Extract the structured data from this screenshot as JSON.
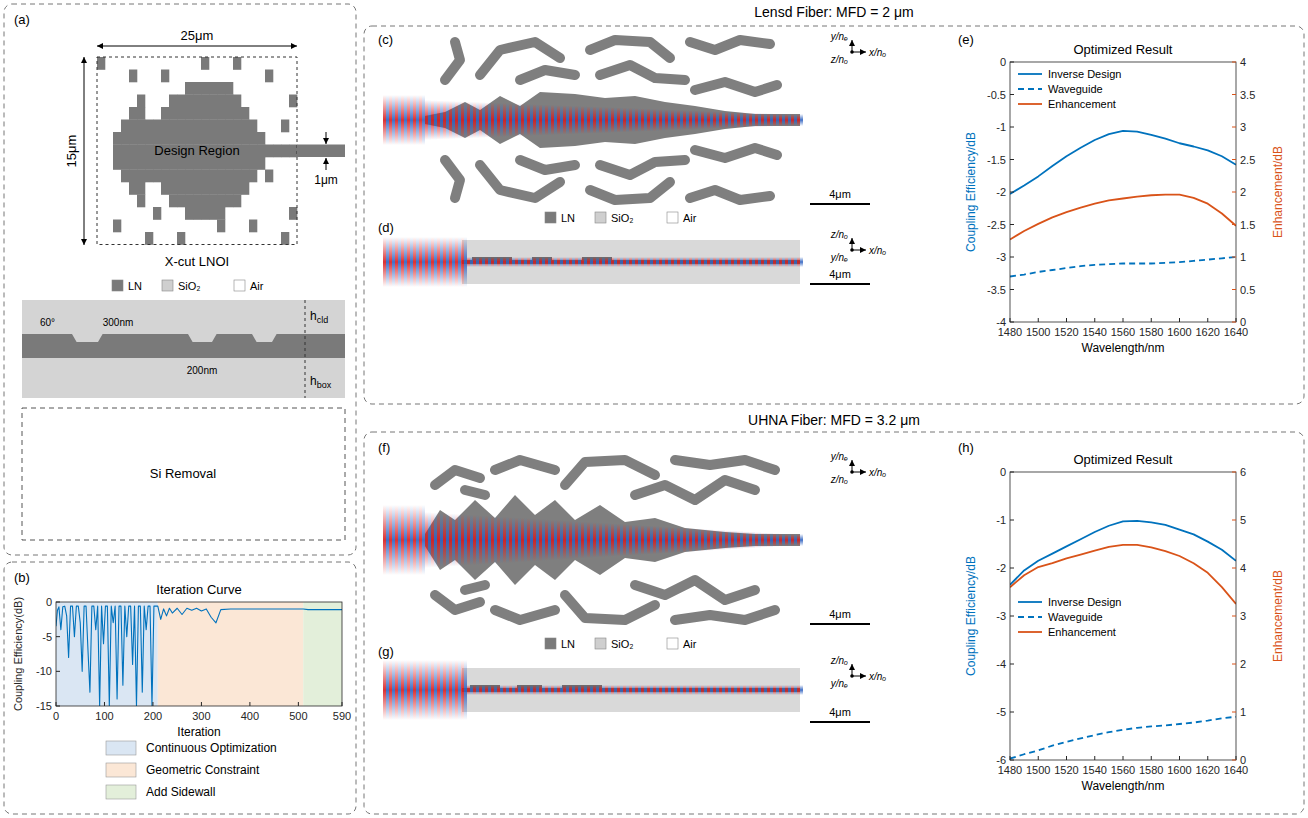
{
  "panel_labels": [
    "(a)",
    "(b)",
    "(c)",
    "(d)",
    "(e)",
    "(f)",
    "(g)",
    "(h)"
  ],
  "group_titles": [
    "Lensd Fiber: MFD = 2 μm",
    "UHNA Fiber: MFD = 3.2 μm"
  ],
  "materials": [
    "LN",
    "SiO₂",
    "Air"
  ],
  "schematic": {
    "width": "25μm",
    "height": "15μm",
    "design_region": "Design Region",
    "waveguide_width": "1μm",
    "platform": "X-cut LNOI",
    "cross_section": {
      "angle": "60°",
      "ridge_height": "300nm",
      "slab_height": "200nm",
      "cladding": {
        "base": "h",
        "sub": "cld"
      },
      "box": {
        "base": "h",
        "sub": "box"
      },
      "substrate": "Si Removal"
    }
  },
  "field_views": [
    {
      "axes": [
        "y/nₑ",
        "x/nₒ",
        "z/nₒ"
      ],
      "scale_bar": "4μm"
    },
    {
      "axes": [
        "z/nₒ",
        "x/nₒ",
        "y/nₑ"
      ],
      "scale_bar": "4μm"
    },
    {
      "axes": [
        "y/nₑ",
        "x/nₒ",
        "z/nₒ"
      ],
      "scale_bar": "4μm"
    },
    {
      "axes": [
        "z/nₒ",
        "x/nₒ",
        "y/nₑ"
      ],
      "scale_bar": "4μm"
    }
  ],
  "chart_data": [
    {
      "type": "line",
      "title": "Iteration Curve",
      "x_label": "Iteration",
      "y_label": "Coupling Efficiency(dB)",
      "x": [
        0,
        3,
        6,
        10,
        14,
        18,
        22,
        26,
        30,
        34,
        38,
        42,
        46,
        50,
        54,
        58,
        62,
        66,
        70,
        74,
        78,
        82,
        86,
        90,
        94,
        98,
        102,
        106,
        110,
        114,
        118,
        122,
        126,
        130,
        134,
        138,
        142,
        146,
        150,
        154,
        158,
        162,
        166,
        170,
        174,
        178,
        182,
        186,
        190,
        194,
        198,
        202,
        206,
        210,
        216,
        222,
        228,
        234,
        240,
        250,
        260,
        270,
        280,
        290,
        300,
        310,
        320,
        330,
        340,
        360,
        400,
        450,
        500,
        510,
        520,
        560,
        590
      ],
      "values": [
        -3.5,
        -1.2,
        -0.7,
        -4,
        -0.7,
        -0.6,
        -2,
        -8,
        -0.6,
        -0.6,
        -5,
        -0.6,
        -0.6,
        -3,
        -10,
        -0.6,
        -0.6,
        -7,
        -13,
        -0.6,
        -0.6,
        -4,
        -0.6,
        -15,
        -0.6,
        -6,
        -0.6,
        -0.6,
        -15,
        -0.6,
        -3,
        -0.6,
        -14,
        -0.6,
        -0.6,
        -12,
        -0.6,
        -5,
        -0.6,
        -0.6,
        -9,
        -0.6,
        -15,
        -0.6,
        -0.6,
        -13,
        -0.6,
        -4,
        -0.6,
        -0.6,
        -15,
        -0.6,
        -0.6,
        -0.6,
        -2.5,
        -1,
        -2,
        -0.9,
        -1.6,
        -0.9,
        -1.8,
        -0.9,
        -1.2,
        -0.9,
        -1.3,
        -1,
        -2.2,
        -3,
        -1.1,
        -1,
        -1,
        -1,
        -1,
        -1,
        -1.1,
        -1.1,
        -1.1
      ],
      "color": "#0072BD",
      "line_style": "solid",
      "xlim": [
        0,
        590
      ],
      "xticks": [
        0,
        100,
        200,
        300,
        400,
        500,
        590
      ],
      "ylim": [
        -15,
        0
      ],
      "yticks": [
        -15,
        -10,
        -5,
        0
      ],
      "grid": false,
      "legend": "bottom",
      "regions": [
        {
          "name": "Continuous Optimization",
          "start": 0,
          "end": 210,
          "color": "#dae6f3"
        },
        {
          "name": "Geometric Constraint",
          "start": 210,
          "end": 510,
          "color": "#fbe7d6"
        },
        {
          "name": "Add Sidewall",
          "start": 510,
          "end": 590,
          "color": "#e3efda"
        }
      ]
    },
    {
      "type": "line",
      "title": "Optimized Result",
      "x_label": "Wavelength/nm",
      "y_label": "Coupling Efficiency/dB",
      "y2_label": "Enhancement/dB",
      "x": [
        1480,
        1490,
        1500,
        1510,
        1520,
        1530,
        1540,
        1550,
        1560,
        1570,
        1580,
        1590,
        1600,
        1610,
        1620,
        1630,
        1640
      ],
      "series": [
        {
          "name": "Inverse Design",
          "color": "#0072BD",
          "line_style": "solid",
          "values": [
            -2.03,
            -1.9,
            -1.76,
            -1.6,
            -1.45,
            -1.32,
            -1.2,
            -1.11,
            -1.06,
            -1.07,
            -1.12,
            -1.18,
            -1.25,
            -1.3,
            -1.36,
            -1.45,
            -1.58
          ]
        },
        {
          "name": "Waveguide",
          "color": "#0072BD",
          "line_style": "dashed",
          "values": [
            -3.3,
            -3.27,
            -3.23,
            -3.2,
            -3.17,
            -3.14,
            -3.12,
            -3.11,
            -3.1,
            -3.1,
            -3.1,
            -3.09,
            -3.08,
            -3.06,
            -3.04,
            -3.02,
            -3.0
          ]
        },
        {
          "name": "Enhancement",
          "color": "#D95319",
          "line_style": "solid",
          "axis": "y2",
          "values": [
            1.27,
            1.4,
            1.51,
            1.61,
            1.69,
            1.76,
            1.82,
            1.87,
            1.9,
            1.93,
            1.95,
            1.96,
            1.96,
            1.91,
            1.82,
            1.67,
            1.48
          ]
        }
      ],
      "xlim": [
        1480,
        1640
      ],
      "xticks": [
        1480,
        1500,
        1520,
        1540,
        1560,
        1580,
        1600,
        1620,
        1640
      ],
      "ylim": [
        -4,
        0
      ],
      "yticks": [
        -4,
        -3.5,
        -3,
        -2.5,
        -2,
        -1.5,
        -1,
        -0.5,
        0
      ],
      "y2lim": [
        0,
        4
      ],
      "y2ticks": [
        0,
        0.5,
        1,
        1.5,
        2,
        2.5,
        3,
        3.5,
        4
      ],
      "grid": false,
      "legend": "upper left"
    },
    {
      "type": "line",
      "title": "Optimized Result",
      "x_label": "Wavelength/nm",
      "y_label": "Coupling Efficiency/dB",
      "y2_label": "Enhancement/dB",
      "x": [
        1480,
        1490,
        1500,
        1510,
        1520,
        1530,
        1540,
        1550,
        1560,
        1570,
        1580,
        1590,
        1600,
        1610,
        1620,
        1630,
        1640
      ],
      "series": [
        {
          "name": "Inverse Design",
          "color": "#0072BD",
          "line_style": "solid",
          "values": [
            -2.35,
            -2.05,
            -1.85,
            -1.7,
            -1.55,
            -1.4,
            -1.25,
            -1.12,
            -1.03,
            -1.02,
            -1.05,
            -1.1,
            -1.2,
            -1.3,
            -1.45,
            -1.62,
            -1.85
          ]
        },
        {
          "name": "Waveguide",
          "color": "#0072BD",
          "line_style": "dashed",
          "values": [
            -5.97,
            -5.88,
            -5.8,
            -5.7,
            -5.62,
            -5.55,
            -5.48,
            -5.42,
            -5.37,
            -5.33,
            -5.3,
            -5.28,
            -5.25,
            -5.22,
            -5.18,
            -5.13,
            -5.1
          ]
        },
        {
          "name": "Enhancement",
          "color": "#D95319",
          "line_style": "solid",
          "axis": "y2",
          "values": [
            3.6,
            3.85,
            4.02,
            4.1,
            4.2,
            4.28,
            4.36,
            4.44,
            4.48,
            4.48,
            4.43,
            4.35,
            4.25,
            4.1,
            3.9,
            3.6,
            3.25
          ]
        }
      ],
      "xlim": [
        1480,
        1640
      ],
      "xticks": [
        1480,
        1500,
        1520,
        1540,
        1560,
        1580,
        1600,
        1620,
        1640
      ],
      "ylim": [
        -6,
        0
      ],
      "yticks": [
        -6,
        -5,
        -4,
        -3,
        -2,
        -1,
        0
      ],
      "y2lim": [
        0,
        6
      ],
      "y2ticks": [
        0,
        1,
        2,
        3,
        4,
        5,
        6
      ],
      "grid": false,
      "legend": "center left"
    }
  ]
}
